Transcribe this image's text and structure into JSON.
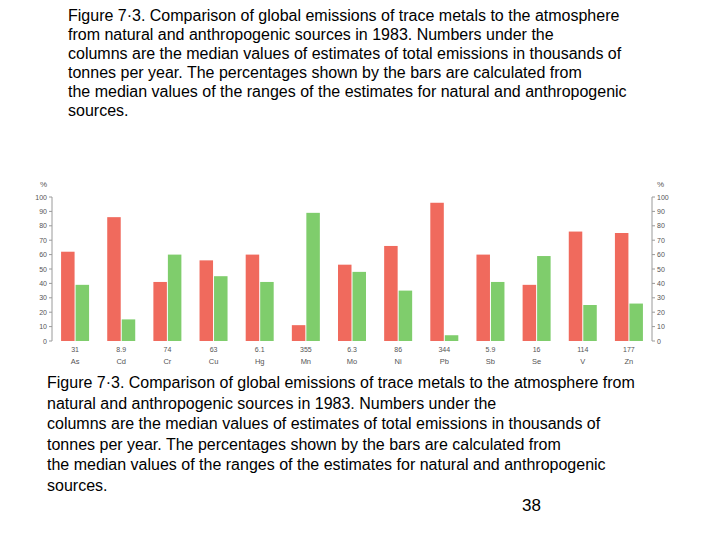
{
  "header": {
    "caption": "Figure 7·3. Comparison of global emissions of trace metals to the atmosphere\nfrom natural and anthropogenic sources in 1983. Numbers under the\ncolumns are the median values of estimates of total emissions in thousands of\ntonnes per year. The percentages shown by the bars are calculated from\nthe median values of the ranges of the estimates for natural and anthropogenic\nsources."
  },
  "chart_data": {
    "type": "bar",
    "y_label": "%",
    "y2_label": "%",
    "categories": [
      "As",
      "Cd",
      "Cr",
      "Cu",
      "Hg",
      "Mn",
      "Mo",
      "Ni",
      "Pb",
      "Sb",
      "Se",
      "V",
      "Zn"
    ],
    "totals": [
      31,
      8.9,
      74,
      63,
      6.1,
      355,
      6.3,
      86,
      344,
      5.9,
      16,
      114,
      177
    ],
    "series": [
      {
        "color": "#f06a5d",
        "values": [
          62,
          86,
          41,
          56,
          60,
          11,
          53,
          66,
          96,
          60,
          39,
          76,
          75
        ]
      },
      {
        "color": "#7fcd6c",
        "values": [
          39,
          15,
          60,
          45,
          41,
          89,
          48,
          35,
          4,
          41,
          59,
          25,
          26
        ]
      }
    ],
    "ylim": [
      0,
      100
    ],
    "yticks": [
      0,
      10,
      20,
      30,
      40,
      50,
      60,
      70,
      80,
      90,
      100
    ],
    "y2lim": [
      0,
      100
    ],
    "y2ticks": [
      0,
      10,
      20,
      30,
      40,
      50,
      60,
      70,
      80,
      90,
      100
    ],
    "grid": false
  },
  "footer": {
    "caption": "Figure 7·3. Comparison of global emissions of trace metals to the atmosphere from\nnatural and anthropogenic sources in 1983. Numbers under the\ncolumns are the median values of estimates of total emissions in thousands of\ntonnes per year. The percentages shown by the bars are calculated from\nthe median values of the ranges of the estimates for natural and anthropogenic\nsources.",
    "page_number": 38
  }
}
